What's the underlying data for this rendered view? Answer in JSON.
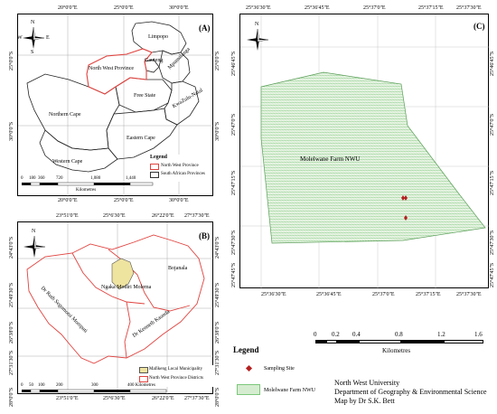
{
  "panelA": {
    "label": "(A)",
    "top_ticks": [
      "20°0'0\"E",
      "25°0'0\"E",
      "30°0'0\"E"
    ],
    "bottom_ticks": [
      "20°0'0\"E",
      "25°0'0\"E",
      "30°0'0\"E"
    ],
    "left_ticks": [
      "25°0'0\"S",
      "30°0'0\"S"
    ],
    "right_ticks": [
      "25°0'0\"S",
      "30°0'0\"S"
    ],
    "places": {
      "limpopo": "Limpopo",
      "north_west": "North West Province",
      "mpumalanga": "Mpumalanga",
      "gauteng": "Gauteng",
      "free_state": "Free State",
      "kwazulu_natal": "KwaZulu-Natal",
      "northern_cape": "Northern Cape",
      "eastern_cape": "Eastern Cape",
      "western_cape": "Western Cape"
    },
    "compass": {
      "n": "N",
      "s": "S",
      "e": "E",
      "w": "W"
    },
    "scale": {
      "ticks": [
        "0",
        "180",
        "360",
        "720",
        "1,080",
        "1,440"
      ],
      "unit": "Kilometres"
    },
    "legend": {
      "title": "Legend",
      "items": [
        "North West Province",
        "South African Provinces"
      ]
    }
  },
  "panelB": {
    "label": "(B)",
    "top_ticks": [
      "23°51'0\"E",
      "25°6'30\"E",
      "26°22'0\"E",
      "27°37'30\"E"
    ],
    "bottom_ticks": [
      "23°51'0\"E",
      "25°6'30\"E",
      "26°22'0\"E",
      "27°37'30\"E"
    ],
    "left_ticks": [
      "24°43'0\"S",
      "25°49'30\"S",
      "26°38'0\"S",
      "27°31'30\"S",
      "28°0'0\"S"
    ],
    "right_ticks": [
      "24°43'0\"S",
      "25°49'30\"S",
      "26°38'0\"S",
      "27°31'30\"S",
      "28°0'0\"S"
    ],
    "places": {
      "bojanala": "Bojanala",
      "ngaka": "Ngaka Modiri Molema",
      "ruth": "Dr Ruth Segomotsi Mompati",
      "kenneth": "Dr Kenneth Kaunda"
    },
    "compass": {
      "n": "N"
    },
    "scale": {
      "ticks": [
        "0",
        "50",
        "100",
        "200",
        "300",
        "400 Kilometres"
      ]
    },
    "legend": {
      "items": [
        "Mafikeng Local Municipality",
        "North West Province Districts"
      ]
    }
  },
  "panelC": {
    "label": "(C)",
    "top_ticks": [
      "25°36'30\"E",
      "25°36'45\"E",
      "25°37'0\"E",
      "25°37'15\"E",
      "25°37'30\"E"
    ],
    "bottom_ticks": [
      "25°36'30\"E",
      "25°36'45\"E",
      "25°37'0\"E",
      "25°37'15\"E",
      "25°37'30\"E"
    ],
    "left_ticks": [
      "25°46'45\"S",
      "25°47'0\"S",
      "25°47'15\"S",
      "25°47'30\"S",
      "25°47'45\"S"
    ],
    "right_ticks": [
      "25°46'45\"S",
      "25°47'0\"S",
      "25°47'15\"S",
      "25°47'30\"S",
      "25°47'45\"S"
    ],
    "farm_label": "Molelwane Farm NWU",
    "compass": {
      "n": "N"
    }
  },
  "scaleC": {
    "ticks": [
      "0",
      "0.2",
      "0.4",
      "0.8",
      "1.2",
      "1.6"
    ],
    "unit": "Kilometres"
  },
  "legendC": {
    "title": "Legend",
    "sampling": "Sampling Site",
    "farm": "Molelwane Farm NWU"
  },
  "credit": {
    "line1": "North West University",
    "line2": "Department of Geography & Environmental Science",
    "line3": "Map by Dr S.K. Bett"
  },
  "colors": {
    "north_west_red": "#e0433f",
    "mafikeng_fill": "#efe3a0",
    "farm_green": "#7cc77a",
    "sampling_red": "#b52020"
  }
}
